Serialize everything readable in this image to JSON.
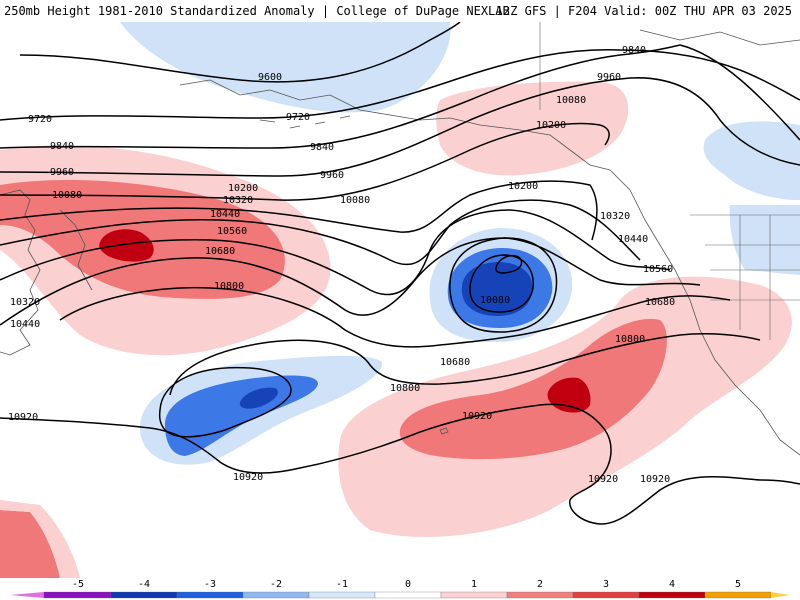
{
  "header": {
    "left": "250mb Height 1981-2010 Standardized Anomaly | College of DuPage NEXLAB",
    "right": "12Z GFS | F204 Valid: 00Z THU APR 03 2025"
  },
  "legend": {
    "ticks": [
      "-5",
      "-4",
      "-3",
      "-2",
      "-1",
      "0",
      "1",
      "2",
      "3",
      "4",
      "5"
    ],
    "colors": [
      "#e070e0",
      "#8a10c0",
      "#1038b0",
      "#2060e0",
      "#90b8f0",
      "#d6e8fa",
      "#ffffff",
      "#fbd0d0",
      "#f08080",
      "#e04040",
      "#c00010",
      "#f0a000",
      "#ffd040"
    ]
  },
  "contour_labels": [
    "9600",
    "9720",
    "9840",
    "9960",
    "10080",
    "10200",
    "10320",
    "10440",
    "10560",
    "10680",
    "10800",
    "10920",
    "9840",
    "9960",
    "10080",
    "10200",
    "9720",
    "9840",
    "9960",
    "10080",
    "10200",
    "10320",
    "10440",
    "10560",
    "10680",
    "10800",
    "10080",
    "10200",
    "10320",
    "10440",
    "10560",
    "10680",
    "10800",
    "10680",
    "10800",
    "10920",
    "10920",
    "10920",
    "10920",
    "10920",
    "10320",
    "10440"
  ]
}
